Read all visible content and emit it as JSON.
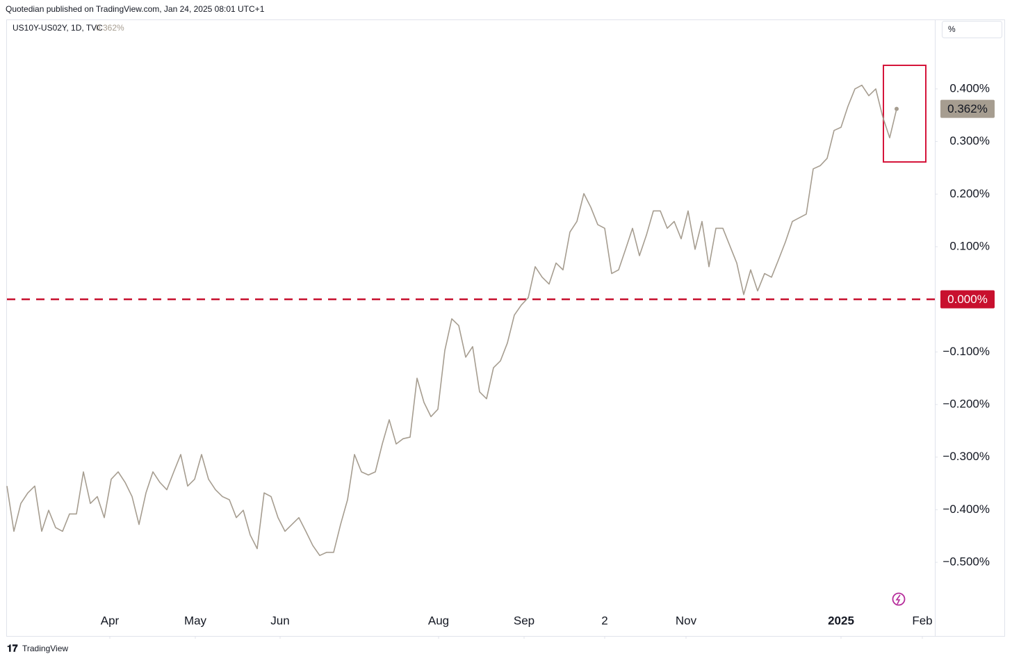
{
  "chart_data": {
    "type": "line",
    "header": "Quotedian published on TradingView.com, Jan 24, 2025 08:01 UTC+1",
    "symbol": "US10Y-US02Y, 1D, TVC",
    "unit_label": "%",
    "brand": "TradingView",
    "series": [
      {
        "name": "US10Y-US02Y",
        "color": "#a69d90",
        "values": [
          -0.355,
          -0.441,
          -0.388,
          -0.368,
          -0.355,
          -0.441,
          -0.401,
          -0.434,
          -0.441,
          -0.408,
          -0.408,
          -0.328,
          -0.388,
          -0.375,
          -0.415,
          -0.342,
          -0.328,
          -0.348,
          -0.375,
          -0.428,
          -0.368,
          -0.328,
          -0.348,
          -0.362,
          -0.328,
          -0.295,
          -0.355,
          -0.342,
          -0.295,
          -0.342,
          -0.362,
          -0.375,
          -0.381,
          -0.415,
          -0.401,
          -0.448,
          -0.474,
          -0.368,
          -0.375,
          -0.415,
          -0.441,
          -0.428,
          -0.415,
          -0.441,
          -0.468,
          -0.487,
          -0.481,
          -0.481,
          -0.428,
          -0.381,
          -0.295,
          -0.328,
          -0.334,
          -0.328,
          -0.275,
          -0.229,
          -0.275,
          -0.265,
          -0.262,
          -0.15,
          -0.196,
          -0.223,
          -0.209,
          -0.097,
          -0.037,
          -0.05,
          -0.11,
          -0.09,
          -0.176,
          -0.189,
          -0.13,
          -0.117,
          -0.083,
          -0.03,
          -0.011,
          0.003,
          0.062,
          0.042,
          0.029,
          0.069,
          0.056,
          0.128,
          0.148,
          0.201,
          0.175,
          0.142,
          0.135,
          0.049,
          0.056,
          0.095,
          0.135,
          0.083,
          0.122,
          0.168,
          0.168,
          0.135,
          0.148,
          0.115,
          0.168,
          0.095,
          0.148,
          0.062,
          0.135,
          0.135,
          0.102,
          0.069,
          0.009,
          0.056,
          0.016,
          0.049,
          0.042,
          0.075,
          0.109,
          0.148,
          0.155,
          0.162,
          0.248,
          0.254,
          0.268,
          0.321,
          0.327,
          0.367,
          0.4,
          0.407,
          0.387,
          0.4,
          0.347,
          0.307,
          0.362
        ],
        "last_value_label": "0.362%"
      }
    ],
    "reference_line": {
      "value": 0,
      "label": "0.000%",
      "color": "#c8102e"
    },
    "xlim": [
      0,
      133.5
    ],
    "xticks": [
      {
        "value": 14.8,
        "label": "Apr"
      },
      {
        "value": 27.1,
        "label": "May"
      },
      {
        "value": 39.3,
        "label": "Jun"
      },
      {
        "value": 62.1,
        "label": "Aug"
      },
      {
        "value": 74.4,
        "label": "Sep"
      },
      {
        "value": 86,
        "label": "2"
      },
      {
        "value": 97.7,
        "label": "Nov"
      },
      {
        "value": 120,
        "label": "2025"
      },
      {
        "value": 131.7,
        "label": "Feb"
      }
    ],
    "ylim": [
      -0.64,
      0.532
    ],
    "yticks": [
      {
        "value": -0.5,
        "label": "−0.500%"
      },
      {
        "value": -0.4,
        "label": "−0.400%"
      },
      {
        "value": -0.3,
        "label": "−0.300%"
      },
      {
        "value": -0.2,
        "label": "−0.200%"
      },
      {
        "value": -0.1,
        "label": "−0.100%"
      },
      {
        "value": 0.1,
        "label": "0.100%"
      },
      {
        "value": 0.2,
        "label": "0.200%"
      },
      {
        "value": 0.3,
        "label": "0.300%"
      },
      {
        "value": 0.4,
        "label": "0.400%"
      }
    ]
  }
}
